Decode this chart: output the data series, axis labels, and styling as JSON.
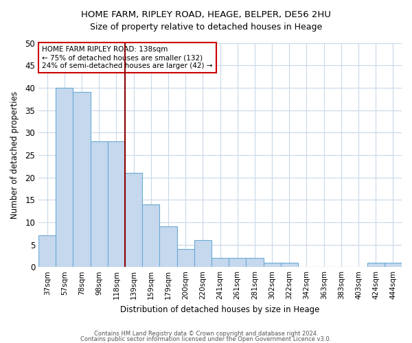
{
  "title1": "HOME FARM, RIPLEY ROAD, HEAGE, BELPER, DE56 2HU",
  "title2": "Size of property relative to detached houses in Heage",
  "xlabel": "Distribution of detached houses by size in Heage",
  "ylabel": "Number of detached properties",
  "categories": [
    "37sqm",
    "57sqm",
    "78sqm",
    "98sqm",
    "118sqm",
    "139sqm",
    "159sqm",
    "179sqm",
    "200sqm",
    "220sqm",
    "241sqm",
    "261sqm",
    "281sqm",
    "302sqm",
    "322sqm",
    "342sqm",
    "363sqm",
    "383sqm",
    "403sqm",
    "424sqm",
    "444sqm"
  ],
  "values": [
    7,
    40,
    39,
    28,
    28,
    21,
    14,
    9,
    4,
    6,
    2,
    2,
    2,
    1,
    1,
    0,
    0,
    0,
    0,
    1,
    1
  ],
  "bar_color": "#c5d8ee",
  "bar_edge_color": "#6aaad4",
  "property_label": "HOME FARM RIPLEY ROAD: 138sqm",
  "annotation_line1": "← 75% of detached houses are smaller (132)",
  "annotation_line2": "24% of semi-detached houses are larger (42) →",
  "vline_color": "#8b0000",
  "vline_x": 4.5,
  "annotation_box_color": "#cc0000",
  "ylim": [
    0,
    50
  ],
  "yticks": [
    0,
    5,
    10,
    15,
    20,
    25,
    30,
    35,
    40,
    45,
    50
  ],
  "footer1": "Contains HM Land Registry data © Crown copyright and database right 2024.",
  "footer2": "Contains public sector information licensed under the Open Government Licence v3.0.",
  "bg_color": "#ffffff",
  "grid_color": "#c8d8e8"
}
